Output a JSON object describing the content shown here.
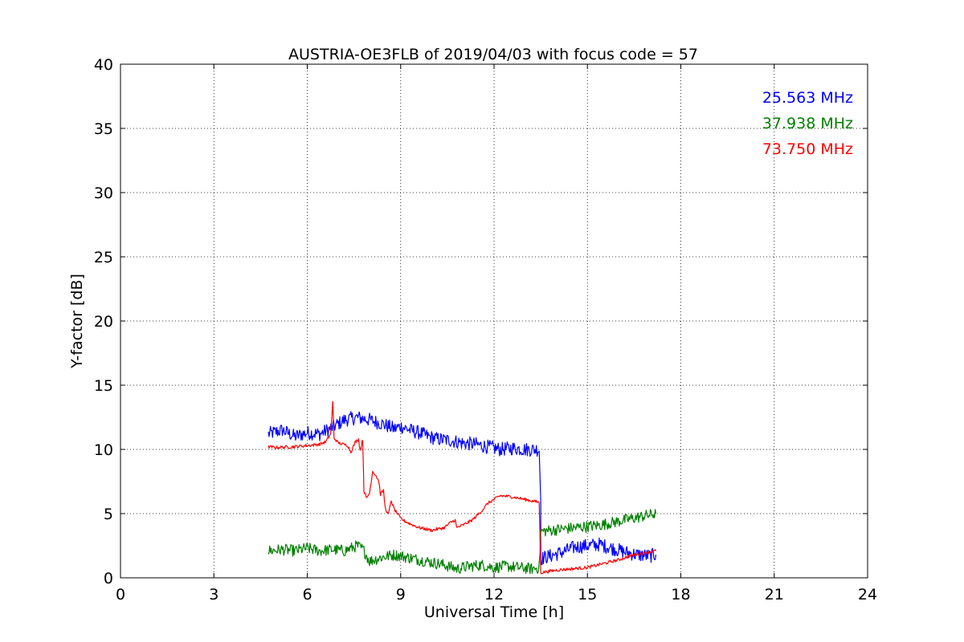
{
  "chart_data": {
    "type": "line",
    "title": "AUSTRIA-OE3FLB of 2019/04/03 with focus code = 57",
    "xlabel": "Universal Time [h]",
    "ylabel": "Y-factor [dB]",
    "xlim": [
      0,
      24
    ],
    "ylim": [
      0,
      40
    ],
    "xticks": [
      "0",
      "3",
      "6",
      "9",
      "12",
      "15",
      "18",
      "21",
      "24"
    ],
    "yticks": [
      "0",
      "5",
      "10",
      "15",
      "20",
      "25",
      "30",
      "35",
      "40"
    ],
    "grid": true,
    "legend_placement": "top-right",
    "series": [
      {
        "name": "25.563 MHz",
        "color": "#0000ff",
        "points": [
          [
            4.75,
            11.2
          ],
          [
            5.2,
            11.5
          ],
          [
            5.6,
            11.0
          ],
          [
            6.0,
            11.3
          ],
          [
            6.4,
            11.2
          ],
          [
            6.8,
            11.7
          ],
          [
            7.2,
            12.3
          ],
          [
            7.6,
            12.5
          ],
          [
            8.0,
            12.3
          ],
          [
            8.4,
            12.0
          ],
          [
            8.8,
            11.6
          ],
          [
            9.0,
            11.8
          ],
          [
            9.3,
            11.5
          ],
          [
            9.6,
            11.3
          ],
          [
            9.9,
            11.0
          ],
          [
            10.2,
            10.8
          ],
          [
            10.6,
            10.7
          ],
          [
            11.0,
            10.5
          ],
          [
            11.4,
            10.4
          ],
          [
            11.8,
            10.2
          ],
          [
            12.2,
            10.0
          ],
          [
            12.6,
            10.1
          ],
          [
            13.0,
            10.0
          ],
          [
            13.45,
            10.0
          ],
          [
            13.5,
            6.0
          ],
          [
            13.5,
            1.5
          ],
          [
            13.8,
            1.7
          ],
          [
            14.2,
            2.0
          ],
          [
            14.6,
            2.4
          ],
          [
            15.0,
            2.5
          ],
          [
            15.4,
            2.6
          ],
          [
            15.8,
            2.3
          ],
          [
            16.2,
            2.0
          ],
          [
            16.6,
            1.8
          ],
          [
            17.0,
            1.7
          ],
          [
            17.2,
            1.8
          ]
        ],
        "noise": 0.55
      },
      {
        "name": "37.938 MHz",
        "color": "#008000",
        "points": [
          [
            4.75,
            2.1
          ],
          [
            5.2,
            2.2
          ],
          [
            5.6,
            2.1
          ],
          [
            6.0,
            2.3
          ],
          [
            6.4,
            2.1
          ],
          [
            6.8,
            2.2
          ],
          [
            7.2,
            2.1
          ],
          [
            7.6,
            2.5
          ],
          [
            7.8,
            2.2
          ],
          [
            8.0,
            1.3
          ],
          [
            8.4,
            1.6
          ],
          [
            8.8,
            1.8
          ],
          [
            9.2,
            1.6
          ],
          [
            9.6,
            1.4
          ],
          [
            10.0,
            1.2
          ],
          [
            10.4,
            1.0
          ],
          [
            10.8,
            0.7
          ],
          [
            11.2,
            0.9
          ],
          [
            11.6,
            1.0
          ],
          [
            12.0,
            0.8
          ],
          [
            12.4,
            0.9
          ],
          [
            12.8,
            0.8
          ],
          [
            13.2,
            0.7
          ],
          [
            13.45,
            0.8
          ],
          [
            13.5,
            3.6
          ],
          [
            13.8,
            3.7
          ],
          [
            14.2,
            3.8
          ],
          [
            14.6,
            3.9
          ],
          [
            15.0,
            4.0
          ],
          [
            15.4,
            4.1
          ],
          [
            15.8,
            4.3
          ],
          [
            16.2,
            4.5
          ],
          [
            16.6,
            4.7
          ],
          [
            17.0,
            4.9
          ],
          [
            17.2,
            5.0
          ]
        ],
        "noise": 0.45
      },
      {
        "name": "73.750 MHz",
        "color": "#ff0000",
        "points": [
          [
            4.75,
            10.2
          ],
          [
            5.0,
            10.15
          ],
          [
            5.5,
            10.2
          ],
          [
            6.0,
            10.3
          ],
          [
            6.4,
            10.4
          ],
          [
            6.6,
            10.6
          ],
          [
            6.75,
            11.2
          ],
          [
            6.82,
            13.7
          ],
          [
            6.86,
            10.9
          ],
          [
            7.0,
            10.5
          ],
          [
            7.3,
            10.3
          ],
          [
            7.4,
            9.8
          ],
          [
            7.55,
            10.6
          ],
          [
            7.65,
            10.8
          ],
          [
            7.7,
            9.9
          ],
          [
            7.78,
            10.8
          ],
          [
            7.82,
            6.8
          ],
          [
            7.9,
            6.2
          ],
          [
            8.0,
            6.6
          ],
          [
            8.1,
            8.3
          ],
          [
            8.2,
            8.0
          ],
          [
            8.3,
            7.5
          ],
          [
            8.35,
            6.5
          ],
          [
            8.45,
            6.8
          ],
          [
            8.5,
            5.5
          ],
          [
            8.6,
            4.9
          ],
          [
            8.7,
            6.0
          ],
          [
            8.8,
            5.3
          ],
          [
            8.9,
            5.0
          ],
          [
            9.0,
            4.6
          ],
          [
            9.3,
            4.2
          ],
          [
            9.6,
            3.9
          ],
          [
            10.0,
            3.7
          ],
          [
            10.4,
            3.9
          ],
          [
            10.6,
            4.3
          ],
          [
            10.75,
            4.5
          ],
          [
            10.8,
            3.9
          ],
          [
            11.0,
            4.1
          ],
          [
            11.3,
            4.5
          ],
          [
            11.6,
            5.2
          ],
          [
            11.8,
            5.8
          ],
          [
            12.0,
            6.1
          ],
          [
            12.2,
            6.4
          ],
          [
            12.6,
            6.3
          ],
          [
            13.0,
            6.1
          ],
          [
            13.4,
            5.9
          ],
          [
            13.45,
            5.9
          ],
          [
            13.5,
            0.4
          ],
          [
            14.0,
            0.6
          ],
          [
            14.5,
            0.7
          ],
          [
            15.0,
            0.8
          ],
          [
            15.5,
            1.1
          ],
          [
            16.0,
            1.4
          ],
          [
            16.5,
            1.8
          ],
          [
            17.0,
            2.0
          ],
          [
            17.2,
            2.1
          ]
        ],
        "noise": 0.12
      }
    ]
  }
}
